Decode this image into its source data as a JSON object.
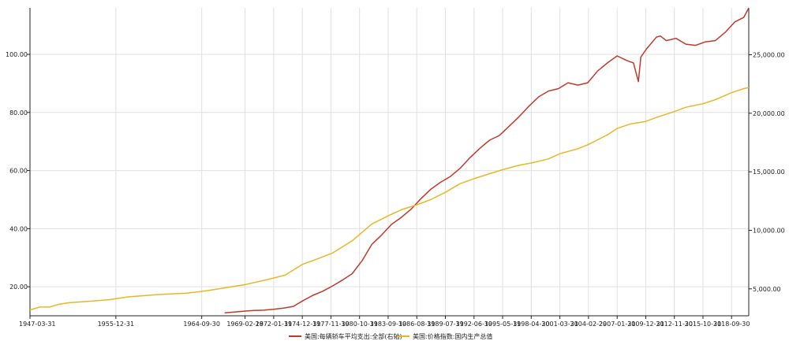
{
  "chart_data": {
    "type": "line",
    "grid": true,
    "legend_position": "bottom-center",
    "x": {
      "start": "1947-03-31",
      "end": "2020-06-30",
      "tick_labels": [
        "1947-03-31",
        "1955-12-31",
        "1964-09-30",
        "1969-02-28",
        "1972-01-31",
        "1974-12-31",
        "1977-11-30",
        "1980-10-31",
        "1983-09-30",
        "1986-08-31",
        "1989-07-31",
        "1992-06-30",
        "1995-05-31",
        "1998-04-30",
        "2001-03-31",
        "2004-02-29",
        "2007-01-31",
        "2009-12-31",
        "2012-11-30",
        "2015-10-31",
        "2018-09-30"
      ]
    },
    "y_left": {
      "range": [
        10,
        116
      ],
      "ticks": [
        20,
        40,
        60,
        80,
        100
      ],
      "tick_labels": [
        "20.00",
        "40.00",
        "60.00",
        "80.00",
        "100.00"
      ]
    },
    "y_right": {
      "range": [
        2700,
        29000
      ],
      "ticks": [
        5000,
        10000,
        15000,
        20000,
        25000
      ],
      "tick_labels": [
        "5,000.00",
        "10,000.00",
        "15,000.00",
        "20,000.00",
        "25,000.00"
      ]
    },
    "series": [
      {
        "name": "美国:每辆轿车平均支出:全部(右轴)",
        "axis": "right",
        "color": "#c0392b",
        "points": [
          [
            "1967-01-31",
            2950
          ],
          [
            "1968-01-31",
            3020
          ],
          [
            "1969-01-31",
            3100
          ],
          [
            "1970-01-31",
            3150
          ],
          [
            "1971-01-31",
            3180
          ],
          [
            "1972-01-31",
            3250
          ],
          [
            "1973-01-31",
            3350
          ],
          [
            "1974-01-31",
            3500
          ],
          [
            "1975-01-31",
            4000
          ],
          [
            "1976-01-31",
            4450
          ],
          [
            "1977-01-31",
            4800
          ],
          [
            "1978-01-31",
            5250
          ],
          [
            "1979-01-31",
            5750
          ],
          [
            "1980-01-31",
            6300
          ],
          [
            "1981-01-31",
            7400
          ],
          [
            "1982-01-31",
            8800
          ],
          [
            "1983-01-31",
            9600
          ],
          [
            "1984-01-31",
            10500
          ],
          [
            "1985-01-31",
            11100
          ],
          [
            "1986-01-31",
            11800
          ],
          [
            "1987-01-31",
            12700
          ],
          [
            "1988-01-31",
            13500
          ],
          [
            "1989-01-31",
            14100
          ],
          [
            "1990-01-31",
            14600
          ],
          [
            "1991-01-31",
            15300
          ],
          [
            "1992-01-31",
            16200
          ],
          [
            "1993-01-31",
            17000
          ],
          [
            "1994-01-31",
            17700
          ],
          [
            "1995-01-31",
            18100
          ],
          [
            "1996-01-31",
            18900
          ],
          [
            "1997-01-31",
            19700
          ],
          [
            "1998-01-31",
            20600
          ],
          [
            "1999-01-31",
            21400
          ],
          [
            "2000-01-31",
            21900
          ],
          [
            "2001-01-31",
            22100
          ],
          [
            "2002-01-31",
            22600
          ],
          [
            "2003-01-31",
            22400
          ],
          [
            "2004-01-31",
            22600
          ],
          [
            "2005-01-31",
            23600
          ],
          [
            "2006-01-31",
            24300
          ],
          [
            "2007-01-31",
            24900
          ],
          [
            "2008-01-31",
            24500
          ],
          [
            "2008-09-30",
            24300
          ],
          [
            "2009-03-31",
            22700
          ],
          [
            "2009-06-30",
            24800
          ],
          [
            "2010-01-31",
            25500
          ],
          [
            "2011-01-31",
            26500
          ],
          [
            "2011-06-30",
            26600
          ],
          [
            "2012-01-31",
            26200
          ],
          [
            "2013-01-31",
            26400
          ],
          [
            "2014-01-31",
            25900
          ],
          [
            "2015-01-31",
            25800
          ],
          [
            "2016-01-31",
            26100
          ],
          [
            "2017-01-31",
            26200
          ],
          [
            "2018-01-31",
            26900
          ],
          [
            "2019-01-31",
            27800
          ],
          [
            "2019-12-31",
            28200
          ],
          [
            "2020-06-30",
            29000
          ]
        ]
      },
      {
        "name": "美国:价格指数:国内生产总值",
        "axis": "left",
        "color": "#e8b824",
        "points": [
          [
            "1947-03-31",
            12.0
          ],
          [
            "1948-03-31",
            13.0
          ],
          [
            "1949-03-31",
            13.0
          ],
          [
            "1950-03-31",
            14.0
          ],
          [
            "1951-03-31",
            14.5
          ],
          [
            "1953-03-31",
            15.0
          ],
          [
            "1955-03-31",
            15.5
          ],
          [
            "1957-03-31",
            16.5
          ],
          [
            "1960-03-31",
            17.3
          ],
          [
            "1963-03-31",
            17.8
          ],
          [
            "1965-03-31",
            18.6
          ],
          [
            "1967-03-31",
            19.7
          ],
          [
            "1969-03-31",
            20.8
          ],
          [
            "1971-03-31",
            22.3
          ],
          [
            "1973-03-31",
            24.0
          ],
          [
            "1974-12-31",
            27.7
          ],
          [
            "1976-01-31",
            29.0
          ],
          [
            "1978-01-31",
            31.6
          ],
          [
            "1980-01-31",
            35.8
          ],
          [
            "1981-01-31",
            38.7
          ],
          [
            "1982-01-31",
            41.6
          ],
          [
            "1983-09-30",
            44.4
          ],
          [
            "1985-01-31",
            46.5
          ],
          [
            "1986-08-31",
            48.2
          ],
          [
            "1988-01-31",
            50.0
          ],
          [
            "1989-07-31",
            52.5
          ],
          [
            "1991-01-31",
            55.5
          ],
          [
            "1992-06-30",
            57.2
          ],
          [
            "1994-01-31",
            58.9
          ],
          [
            "1995-05-31",
            60.3
          ],
          [
            "1997-01-31",
            61.8
          ],
          [
            "1998-04-30",
            62.6
          ],
          [
            "2000-01-31",
            64.0
          ],
          [
            "2001-03-31",
            65.8
          ],
          [
            "2003-01-31",
            67.5
          ],
          [
            "2004-02-29",
            69.0
          ],
          [
            "2006-01-31",
            72.3
          ],
          [
            "2007-01-31",
            74.5
          ],
          [
            "2008-06-30",
            76.1
          ],
          [
            "2009-12-31",
            76.9
          ],
          [
            "2011-01-31",
            78.3
          ],
          [
            "2012-11-30",
            80.3
          ],
          [
            "2014-01-31",
            81.8
          ],
          [
            "2015-10-31",
            83.0
          ],
          [
            "2017-01-31",
            84.4
          ],
          [
            "2018-09-30",
            86.8
          ],
          [
            "2019-12-31",
            88.2
          ],
          [
            "2020-06-30",
            88.6
          ]
        ]
      }
    ]
  }
}
